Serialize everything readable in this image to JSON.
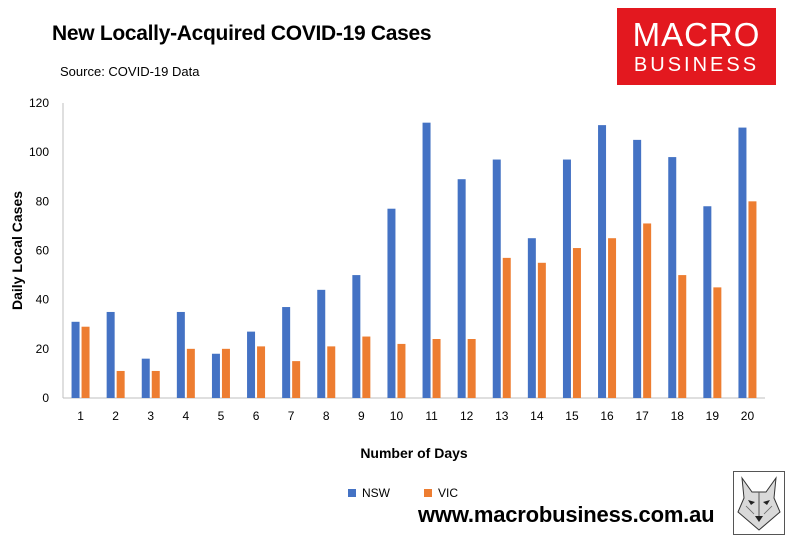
{
  "header": {
    "title": "New Locally-Acquired COVID-19 Cases",
    "subtitle": "Source: COVID-19 Data"
  },
  "logo": {
    "line1": "MACRO",
    "line2": "BUSINESS"
  },
  "footer": {
    "url": "www.macrobusiness.com.au"
  },
  "colors": {
    "nsw": "#4472c4",
    "vic": "#ed7d31",
    "brand": "#e3181f"
  },
  "chart_data": {
    "type": "bar",
    "title": "New Locally-Acquired COVID-19 Cases",
    "subtitle": "Source: COVID-19 Data",
    "xlabel": "Number of Days",
    "ylabel": "Daily Local Cases",
    "ylim": [
      0,
      120
    ],
    "yticks": [
      0,
      20,
      40,
      60,
      80,
      100,
      120
    ],
    "grid": false,
    "legend": "bottom",
    "categories": [
      "1",
      "2",
      "3",
      "4",
      "5",
      "6",
      "7",
      "8",
      "9",
      "10",
      "11",
      "12",
      "13",
      "14",
      "15",
      "16",
      "17",
      "18",
      "19",
      "20"
    ],
    "series": [
      {
        "name": "NSW",
        "color": "#4472c4",
        "values": [
          31,
          35,
          16,
          35,
          18,
          27,
          37,
          44,
          50,
          77,
          112,
          89,
          97,
          65,
          97,
          111,
          105,
          98,
          78,
          110
        ]
      },
      {
        "name": "VIC",
        "color": "#ed7d31",
        "values": [
          29,
          11,
          11,
          20,
          20,
          21,
          15,
          21,
          25,
          22,
          24,
          24,
          57,
          55,
          61,
          65,
          71,
          50,
          45,
          80
        ]
      }
    ]
  }
}
